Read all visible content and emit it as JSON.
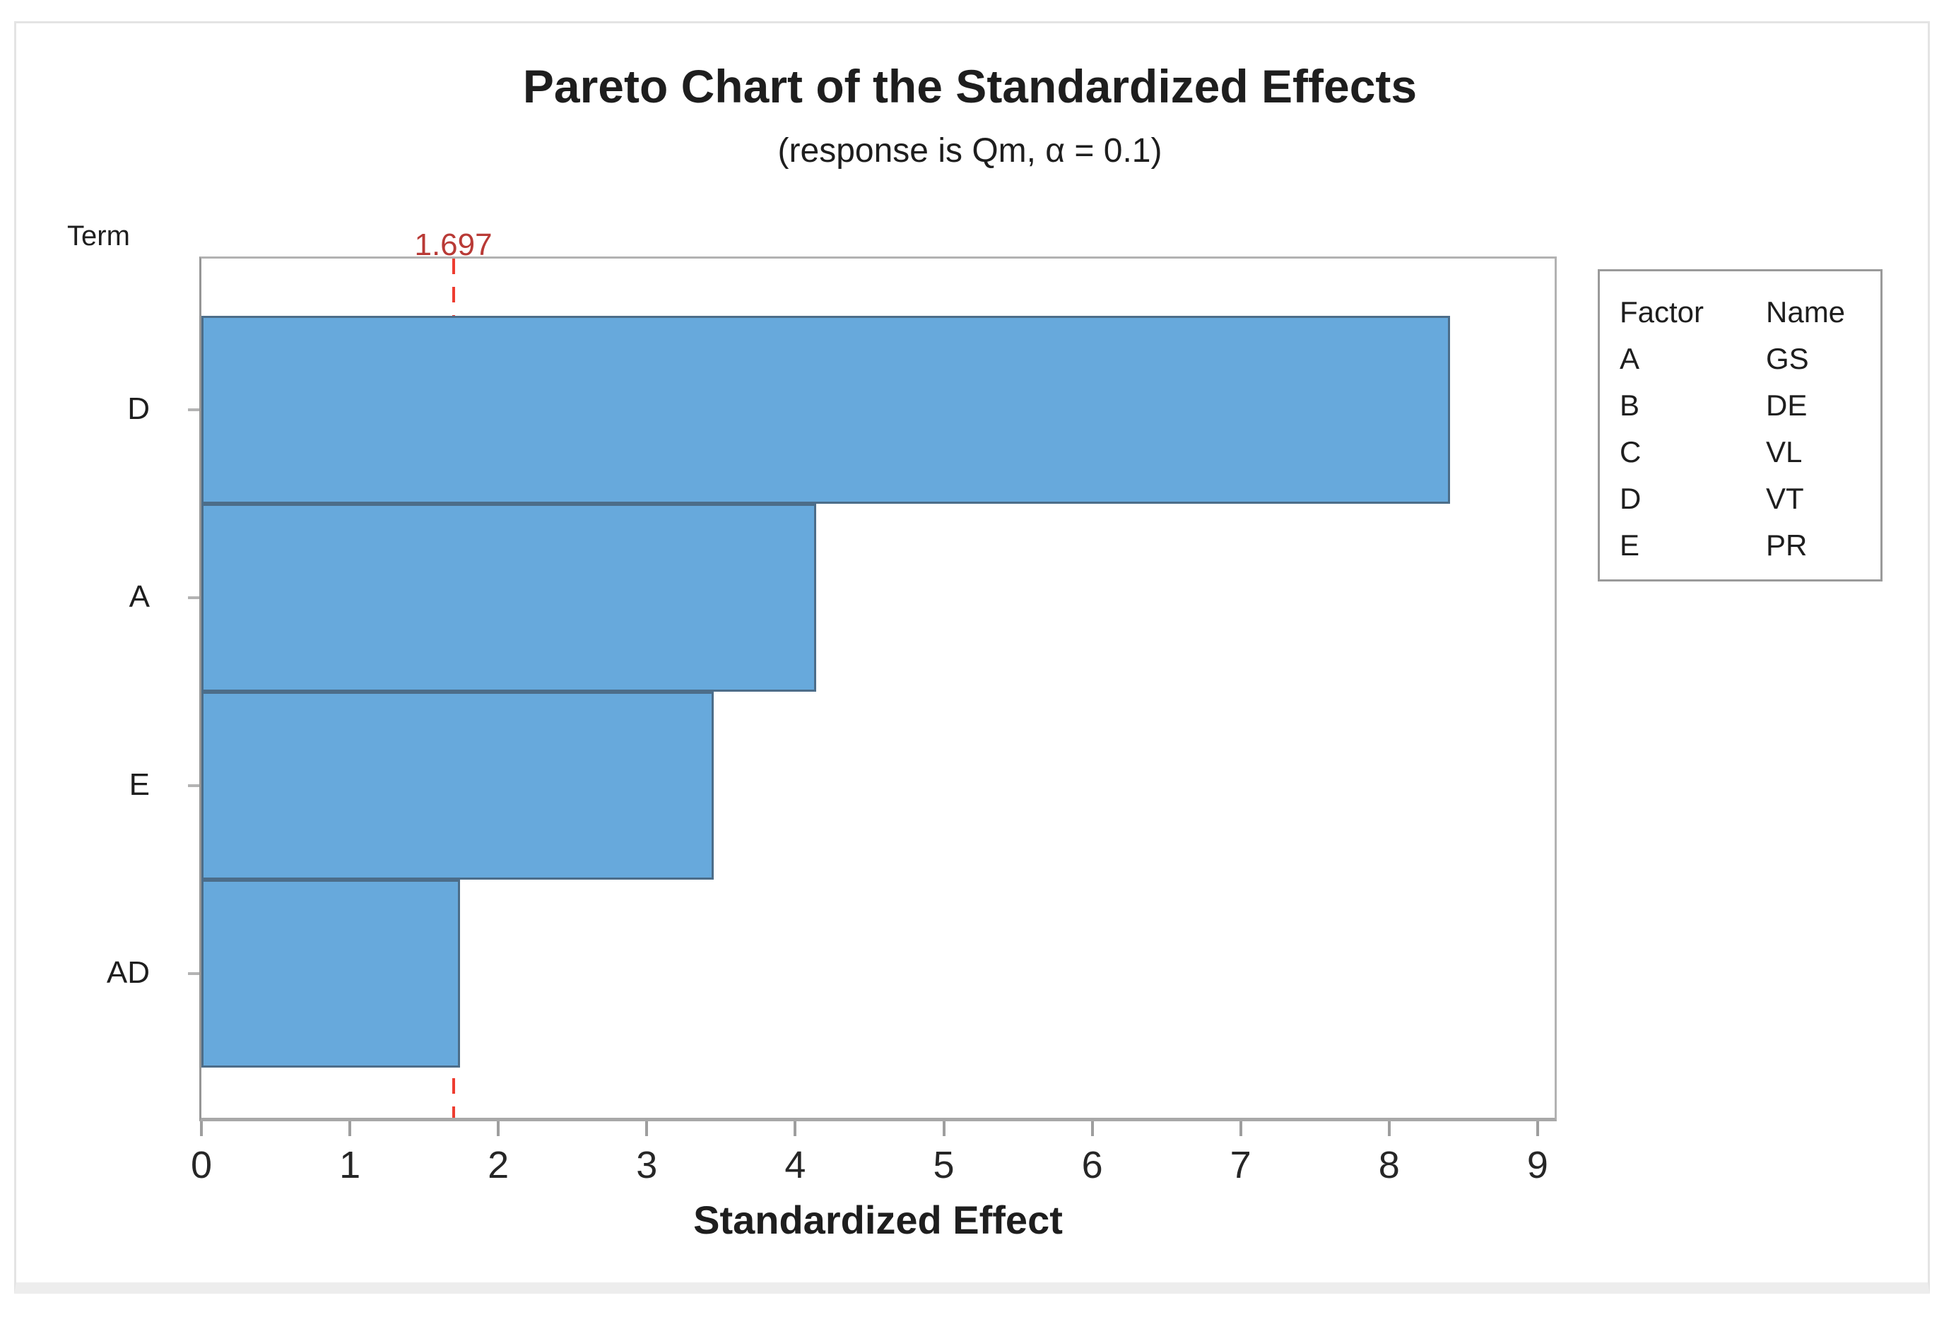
{
  "figure": {
    "panel": "white chart panel with light gray frame"
  },
  "chart_data": {
    "type": "bar",
    "orientation": "horizontal",
    "title": "Pareto Chart of the Standardized Effects",
    "subtitle": "(response is Qm, α = 0.1)",
    "categories": [
      "D",
      "A",
      "E",
      "AD"
    ],
    "values": [
      8.41,
      4.14,
      3.45,
      1.74
    ],
    "xlabel": "Standardized Effect",
    "ylabel": "Term",
    "xlim": [
      0,
      9.12
    ],
    "x_ticks": [
      0,
      1,
      2,
      3,
      4,
      5,
      6,
      7,
      8,
      9
    ],
    "grid": "off",
    "legend_position": "right",
    "reference_line": {
      "value": 1.697,
      "label": "1.697"
    },
    "colors": {
      "bar_fill": "#67a9dc",
      "bar_border": "#4c6d89",
      "ref_line": "#ee3c30",
      "ref_label": "#b93a36"
    }
  },
  "legend": {
    "headers": [
      "Factor",
      "Name"
    ],
    "rows": [
      {
        "factor": "A",
        "name": "GS"
      },
      {
        "factor": "B",
        "name": "DE"
      },
      {
        "factor": "C",
        "name": "VL"
      },
      {
        "factor": "D",
        "name": "VT"
      },
      {
        "factor": "E",
        "name": "PR"
      }
    ]
  }
}
